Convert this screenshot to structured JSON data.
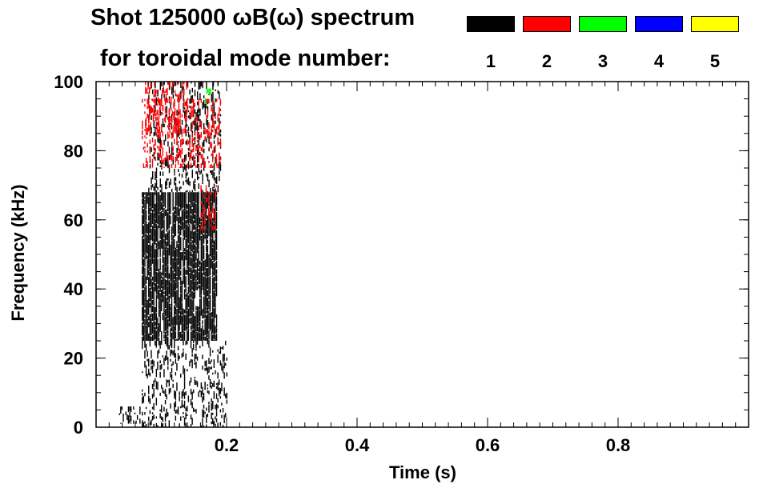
{
  "title_line1": "Shot 125000 ωB(ω) spectrum",
  "title_line2": "for toroidal mode number:",
  "modes": [
    {
      "number": "1",
      "color": "#000000"
    },
    {
      "number": "2",
      "color": "#ff0000"
    },
    {
      "number": "3",
      "color": "#00ff00"
    },
    {
      "number": "4",
      "color": "#0000ff"
    },
    {
      "number": "5",
      "color": "#ffff00"
    }
  ],
  "chart_data": {
    "type": "heatmap",
    "xlabel": "Time (s)",
    "ylabel": "Frequency (kHz)",
    "xlim": [
      0.0,
      1.0
    ],
    "ylim": [
      0,
      100
    ],
    "xticks": [
      0.2,
      0.4,
      0.6,
      0.8
    ],
    "xtick_labels": [
      "0.2",
      "0.4",
      "0.6",
      "0.8"
    ],
    "yticks": [
      0,
      20,
      40,
      60,
      80,
      100
    ],
    "ytick_labels": [
      "0",
      "20",
      "40",
      "60",
      "80",
      "100"
    ],
    "x_minor_step": 0.02,
    "y_minor_step": 5,
    "grid": false,
    "legend": "top-right",
    "regions": [
      {
        "mode": 1,
        "t_start": 0.035,
        "t_end": 0.07,
        "f_min": 1,
        "f_max": 6
      },
      {
        "mode": 1,
        "t_start": 0.07,
        "t_end": 0.2,
        "f_min": 0,
        "f_max": 25
      },
      {
        "mode": 1,
        "t_start": 0.07,
        "t_end": 0.185,
        "f_min": 25,
        "f_max": 68
      },
      {
        "mode": 1,
        "t_start": 0.08,
        "t_end": 0.19,
        "f_min": 68,
        "f_max": 100
      },
      {
        "mode": 2,
        "t_start": 0.075,
        "t_end": 0.14,
        "f_min": 85,
        "f_max": 100
      },
      {
        "mode": 2,
        "t_start": 0.16,
        "t_end": 0.185,
        "f_min": 57,
        "f_max": 70
      },
      {
        "mode": 2,
        "t_start": 0.07,
        "t_end": 0.19,
        "f_min": 75,
        "f_max": 95
      },
      {
        "mode": 3,
        "t_start": 0.165,
        "t_end": 0.175,
        "f_min": 93,
        "f_max": 98
      }
    ]
  }
}
